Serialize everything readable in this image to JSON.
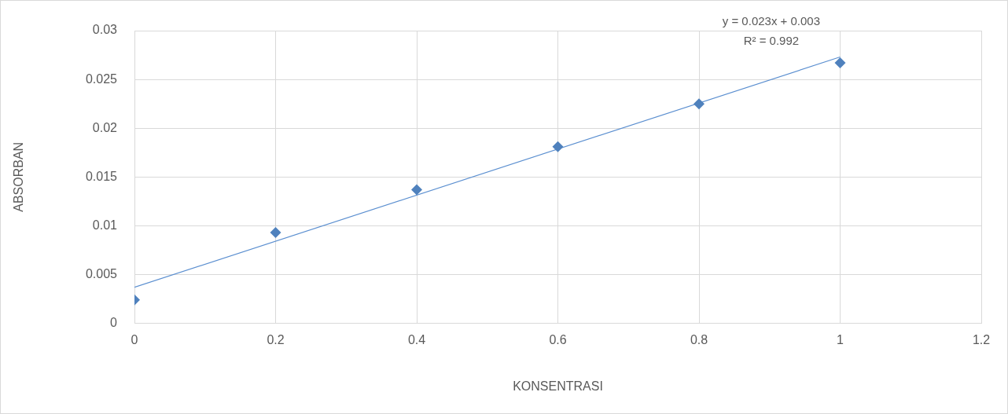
{
  "chart_data": {
    "type": "scatter",
    "xlabel": "KONSENTRASI",
    "ylabel": "ABSORBAN",
    "xlim": [
      0,
      1.2
    ],
    "xticks": [
      0,
      0.2,
      0.4,
      0.6,
      0.8,
      1,
      1.2
    ],
    "ylim": [
      0,
      0.03
    ],
    "yticks": [
      0,
      0.005,
      0.01,
      0.015,
      0.02,
      0.025,
      0.03
    ],
    "grid": true,
    "legend": false,
    "series": [
      {
        "color": "#4f81bd",
        "marker": "diamond",
        "x": [
          0,
          0.2,
          0.4,
          0.6,
          0.8,
          1
        ],
        "values": [
          0.0024,
          0.0093,
          0.0137,
          0.0181,
          0.0225,
          0.0267
        ]
      },
      {
        "type": "line",
        "color": "#5b8fd0",
        "marker": "none",
        "line_style": "solid",
        "x": [
          0,
          1
        ],
        "values": [
          0.0037,
          0.0273
        ]
      }
    ],
    "annotations": [
      "y = 0.023x + 0.003",
      "R² = 0.992"
    ]
  }
}
